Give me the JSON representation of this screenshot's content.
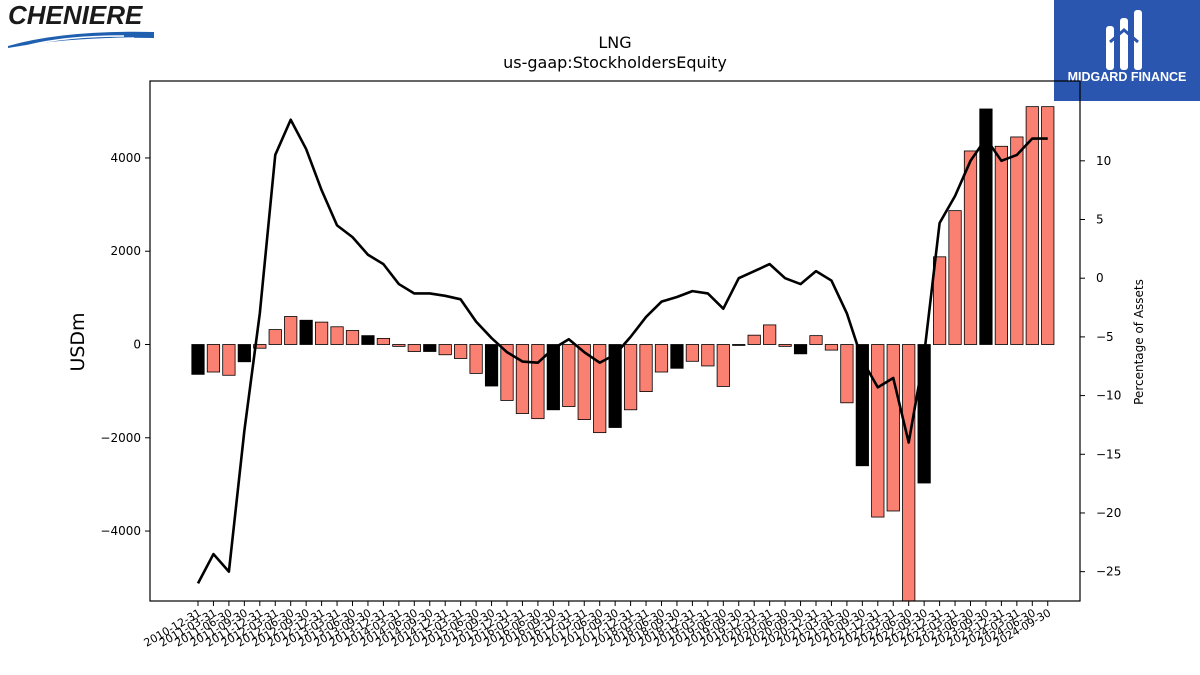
{
  "header": {
    "company_logo_text": "CHENIERE",
    "brand_name": "MIDGARD FINANCE",
    "brand_color": "#2a56b0"
  },
  "chart_data": {
    "type": "bar",
    "title": "LNG",
    "subtitle": "us-gaap:StockholdersEquity",
    "ylabel": "USDm",
    "y2label": "Percentage of Assets",
    "ylim": [
      -5500,
      5650
    ],
    "y2lim": [
      -27.5,
      16.8
    ],
    "yticks": [
      -4000,
      -2000,
      0,
      2000,
      4000
    ],
    "y2ticks": [
      -25,
      -20,
      -15,
      -10,
      -5,
      0,
      5,
      10
    ],
    "colors": {
      "positive_bar": "#fa8072",
      "highlight_bar": "#000000",
      "line": "#000000"
    },
    "x": [
      "2010-12-31",
      "2011-03-31",
      "2011-06-30",
      "2011-09-30",
      "2011-12-31",
      "2012-03-31",
      "2012-06-30",
      "2012-09-30",
      "2012-12-31",
      "2013-03-31",
      "2013-06-30",
      "2013-09-30",
      "2013-12-31",
      "2014-03-31",
      "2014-06-30",
      "2014-09-30",
      "2014-12-31",
      "2015-03-31",
      "2015-06-30",
      "2015-09-30",
      "2015-12-31",
      "2016-03-31",
      "2016-06-30",
      "2016-09-30",
      "2016-12-31",
      "2017-03-31",
      "2017-06-30",
      "2017-09-30",
      "2017-12-31",
      "2018-03-31",
      "2018-06-30",
      "2018-09-30",
      "2018-12-31",
      "2019-03-31",
      "2019-06-30",
      "2019-09-30",
      "2019-12-31",
      "2020-03-31",
      "2020-06-30",
      "2020-09-30",
      "2020-12-31",
      "2021-03-31",
      "2021-06-30",
      "2021-09-30",
      "2021-12-31",
      "2022-03-31",
      "2022-06-30",
      "2022-09-30",
      "2022-12-31",
      "2023-03-31",
      "2023-06-30",
      "2023-09-30",
      "2023-12-31",
      "2024-03-31",
      "2024-06-30",
      "2024-09-30"
    ],
    "series": [
      {
        "kind": "bar",
        "values": [
          -640,
          -590,
          -660,
          -370,
          -80,
          320,
          600,
          520,
          480,
          380,
          300,
          190,
          130,
          -40,
          -150,
          -150,
          -220,
          -300,
          -620,
          -890,
          -1200,
          -1480,
          -1590,
          -1400,
          -1330,
          -1610,
          -1890,
          -1780,
          -1400,
          -1010,
          -590,
          -510,
          -360,
          -460,
          -900,
          -20,
          200,
          420,
          -40,
          -200,
          190,
          -120,
          -1250,
          -2600,
          -3700,
          -3570,
          -5500,
          -2970,
          1880,
          2870,
          4150,
          5050,
          4250,
          4450,
          5100,
          5100
        ],
        "highlight": [
          true,
          false,
          false,
          true,
          false,
          false,
          false,
          true,
          false,
          false,
          false,
          true,
          false,
          false,
          false,
          true,
          false,
          false,
          false,
          true,
          false,
          false,
          false,
          true,
          false,
          false,
          false,
          true,
          false,
          false,
          false,
          true,
          false,
          false,
          false,
          true,
          false,
          false,
          false,
          true,
          false,
          false,
          false,
          true,
          false,
          false,
          false,
          true,
          false,
          false,
          false,
          true,
          false,
          false,
          false,
          false
        ]
      },
      {
        "kind": "line",
        "axis": "right",
        "values": [
          -26.0,
          -23.5,
          -25.0,
          -13.0,
          -3.0,
          10.5,
          13.5,
          11.0,
          7.5,
          4.5,
          3.5,
          2.0,
          1.2,
          -0.5,
          -1.3,
          -1.3,
          -1.5,
          -1.8,
          -3.7,
          -5.1,
          -6.3,
          -7.1,
          -7.2,
          -6.0,
          -5.2,
          -6.3,
          -7.2,
          -6.5,
          -5.0,
          -3.3,
          -2.0,
          -1.6,
          -1.1,
          -1.3,
          -2.6,
          0.0,
          0.6,
          1.2,
          0.0,
          -0.5,
          0.6,
          -0.2,
          -3.0,
          -7.0,
          -9.3,
          -8.5,
          -14.0,
          -6.5,
          4.7,
          7.0,
          10.0,
          11.9,
          10.0,
          10.5,
          11.9,
          11.9
        ]
      }
    ]
  }
}
